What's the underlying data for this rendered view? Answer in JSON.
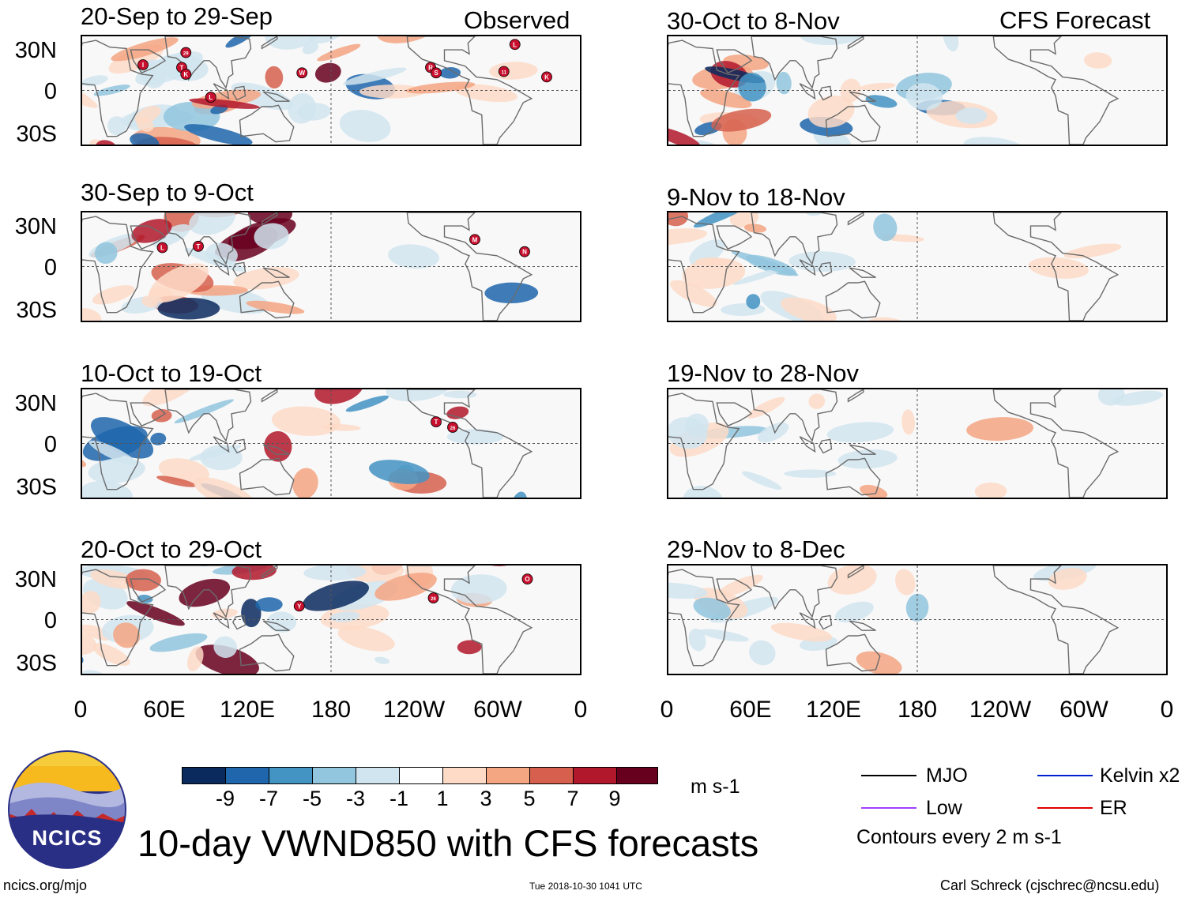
{
  "colors": {
    "mjo": "#000000",
    "low": "#a040ff",
    "kelvin": "#0020d0",
    "er": "#e00000"
  },
  "columns": {
    "left_header": "Observed",
    "right_header": "CFS Forecast"
  },
  "panels": {
    "observed": [
      {
        "title": "20-Sep to 29-Sep"
      },
      {
        "title": "30-Sep to 9-Oct"
      },
      {
        "title": "10-Oct to 19-Oct"
      },
      {
        "title": "20-Oct to 29-Oct"
      }
    ],
    "forecast": [
      {
        "title": "30-Oct to 8-Nov"
      },
      {
        "title": "9-Nov to 18-Nov"
      },
      {
        "title": "19-Nov to 28-Nov"
      },
      {
        "title": "29-Nov to 8-Dec"
      }
    ]
  },
  "axes": {
    "lat_labels": [
      "30N",
      "0",
      "30S"
    ],
    "lon_labels": [
      "0",
      "60E",
      "120E",
      "180",
      "120W",
      "60W",
      "0"
    ]
  },
  "colorbar": {
    "colors": [
      "#0a2a5e",
      "#1f66ac",
      "#4393c3",
      "#92c5de",
      "#d1e5f0",
      "#ffffff",
      "#fddbc7",
      "#f4a582",
      "#d6604d",
      "#b2182b",
      "#67001f"
    ],
    "ticks": [
      "-9",
      "-7",
      "-5",
      "-3",
      "-1",
      "1",
      "3",
      "5",
      "7",
      "9"
    ],
    "units": "m s-1"
  },
  "legend": {
    "mjo": "MJO",
    "low": "Low",
    "kelvin": "Kelvin x2",
    "er": "ER",
    "contours": "Contours every 2 m s-1"
  },
  "logo": {
    "text": "NCICS"
  },
  "title": "10-day VWND850 with CFS forecasts",
  "footer": {
    "url": "ncics.org/mjo",
    "timestamp": "Tue 2018-10-30 1041 UTC",
    "author": "Carl Schreck (cjschrec@ncsu.edu)"
  }
}
